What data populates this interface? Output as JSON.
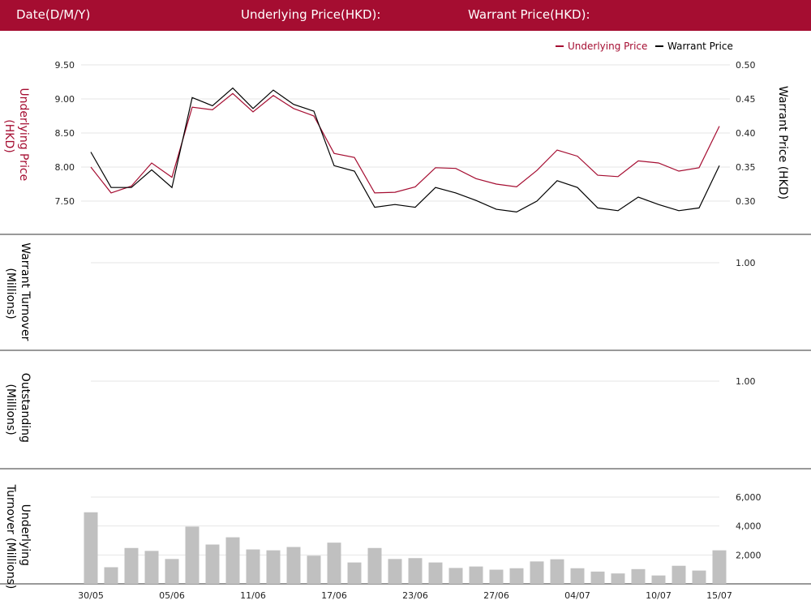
{
  "header": {
    "date_label": "Date(D/M/Y)",
    "underlying_label": "Underlying Price(HKD):",
    "warrant_label": "Warrant Price(HKD):"
  },
  "colors": {
    "brand": "#a50d31",
    "underlying": "#a50d31",
    "warrant": "#000000",
    "bars": "#c0c0c0"
  },
  "chart_data": [
    {
      "type": "line",
      "legend": [
        "Underlying Price",
        "Warrant Price"
      ],
      "legend_position": "top-right",
      "ylabel_left": "Underlying Price (HKD)",
      "ylabel_right": "Warrant  Price (HKD)",
      "ylim_left": [
        7.3,
        9.5
      ],
      "ylim_right": [
        0.28,
        0.5
      ],
      "yticks_left": [
        "9.50",
        "9.00",
        "8.50",
        "8.00",
        "7.50"
      ],
      "yticks_right": [
        "0.50",
        "0.45",
        "0.40",
        "0.35",
        "0.30"
      ],
      "series": [
        {
          "name": "Underlying Price",
          "axis": "left",
          "values": [
            8.0,
            7.62,
            7.72,
            8.06,
            7.85,
            8.88,
            8.84,
            9.08,
            8.81,
            9.05,
            8.86,
            8.75,
            8.2,
            8.14,
            7.62,
            7.63,
            7.71,
            7.99,
            7.98,
            7.83,
            7.75,
            7.71,
            7.95,
            8.25,
            8.16,
            7.88,
            7.86,
            8.09,
            8.06,
            7.94,
            7.99,
            8.6
          ]
        },
        {
          "name": "Warrant Price",
          "axis": "right",
          "values": [
            0.372,
            0.32,
            0.32,
            0.346,
            0.32,
            0.452,
            0.44,
            0.466,
            0.436,
            0.463,
            0.442,
            0.432,
            0.352,
            0.344,
            0.291,
            0.295,
            0.291,
            0.32,
            0.312,
            0.301,
            0.288,
            0.284,
            0.3,
            0.33,
            0.32,
            0.29,
            0.286,
            0.306,
            0.295,
            0.286,
            0.29,
            0.352
          ]
        }
      ]
    },
    {
      "type": "bar",
      "ylabel": "Warrant  Turnover (Millions)",
      "yticks": [
        "1.00"
      ],
      "values": []
    },
    {
      "type": "bar",
      "ylabel": "Outstanding (Millions)",
      "yticks": [
        "1.00"
      ],
      "values": []
    },
    {
      "type": "bar",
      "ylabel": "Underlying Turnover (Millions)",
      "ylim": [
        0,
        6000
      ],
      "yticks": [
        "6,000",
        "4,000",
        "2,000"
      ],
      "xticks": [
        "30/05",
        "05/06",
        "11/06",
        "17/06",
        "23/06",
        "27/06",
        "04/07",
        "10/07",
        "15/07"
      ],
      "values": [
        4950,
        1150,
        2480,
        2280,
        1720,
        3960,
        2720,
        3220,
        2380,
        2320,
        2550,
        1950,
        2850,
        1480,
        2480,
        1720,
        1780,
        1480,
        1100,
        1200,
        980,
        1080,
        1550,
        1700,
        1080,
        850,
        720,
        1020,
        580,
        1250,
        920,
        2320
      ]
    }
  ]
}
